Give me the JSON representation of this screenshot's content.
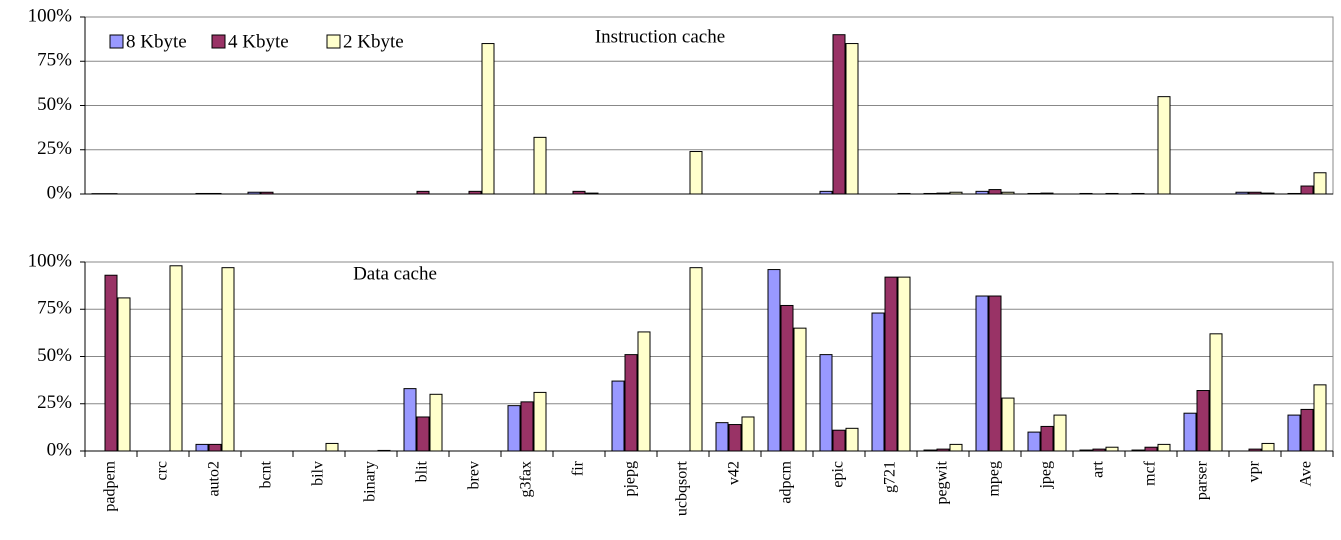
{
  "chart_data": [
    {
      "type": "bar",
      "title": "Instruction cache",
      "legend": "upper left",
      "grid": true,
      "ylim": [
        0,
        100
      ],
      "yticks": [
        {
          "value": 0,
          "label": "0%"
        },
        {
          "value": 25,
          "label": "25%"
        },
        {
          "value": 50,
          "label": "50%"
        },
        {
          "value": 75,
          "label": "75%"
        },
        {
          "value": 100,
          "label": "100%"
        }
      ],
      "series": [
        {
          "name": "8 Kbyte",
          "color": "#9999ff",
          "values": [
            0.2,
            0,
            0.3,
            1,
            0,
            0,
            0,
            0,
            0,
            0,
            0,
            0,
            0,
            0,
            1.5,
            0,
            0.3,
            1.5,
            0.3,
            0.3,
            0.3,
            0,
            1,
            0.3
          ]
        },
        {
          "name": "4 Kbyte",
          "color": "#993366",
          "values": [
            0.2,
            0,
            0.3,
            1,
            0,
            0,
            1.5,
            1.5,
            0,
            1.5,
            0,
            0,
            0,
            0,
            90,
            0,
            0.5,
            2.5,
            0.5,
            0,
            0,
            0,
            1,
            4.5
          ]
        },
        {
          "name": "2 Kbyte",
          "color": "#ffffcc",
          "values": [
            0,
            0,
            0,
            0,
            0,
            0,
            0,
            85,
            32,
            0.5,
            0,
            24,
            0,
            0,
            85,
            0.3,
            1,
            1,
            0,
            0.3,
            55,
            0,
            0.5,
            12
          ]
        }
      ]
    },
    {
      "type": "bar",
      "title": "Data cache",
      "grid": true,
      "categories": [
        "padpem",
        "crc",
        "auto2",
        "bcnt",
        "bilv",
        "binary",
        "blit",
        "brev",
        "g3fax",
        "fir",
        "pjepg",
        "ucbqsort",
        "v42",
        "adpcm",
        "epic",
        "g721",
        "pegwit",
        "mpeg",
        "jpeg",
        "art",
        "mcf",
        "parser",
        "vpr",
        "Ave"
      ],
      "ylim": [
        0,
        100
      ],
      "yticks": [
        {
          "value": 0,
          "label": "0%"
        },
        {
          "value": 25,
          "label": "25%"
        },
        {
          "value": 50,
          "label": "50%"
        },
        {
          "value": 75,
          "label": "75%"
        },
        {
          "value": 100,
          "label": "100%"
        }
      ],
      "series": [
        {
          "values": [
            0,
            0,
            3.5,
            0,
            0,
            0,
            33,
            0,
            24,
            0,
            37,
            0,
            15,
            96,
            51,
            73,
            0.5,
            82,
            10,
            0.5,
            0.5,
            20,
            0,
            19
          ]
        },
        {
          "values": [
            93,
            0,
            3.5,
            0,
            0,
            0,
            18,
            0,
            26,
            0,
            51,
            0,
            14,
            77,
            11,
            92,
            1,
            82,
            13,
            1,
            2,
            32,
            1,
            22
          ]
        },
        {
          "values": [
            81,
            98,
            97,
            0,
            4,
            0.3,
            30,
            0,
            31,
            0,
            63,
            97,
            18,
            65,
            12,
            92,
            3.5,
            28,
            19,
            2,
            3.5,
            62,
            4,
            35
          ]
        }
      ]
    }
  ]
}
